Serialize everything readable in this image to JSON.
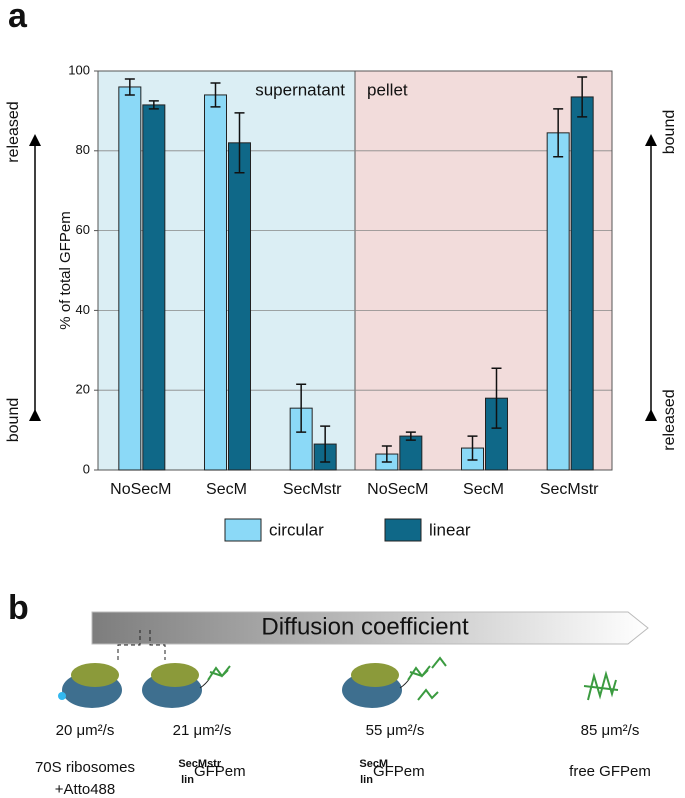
{
  "chart_data": {
    "type": "bar",
    "panel_label": "a",
    "ylabel": "% of total GFPem",
    "categories": [
      "NoSecM",
      "SecM",
      "SecMstr",
      "NoSecM",
      "SecM",
      "SecMstr"
    ],
    "series": [
      {
        "name": "circular",
        "color": "#8bd9f7",
        "values": [
          96,
          94,
          15.5,
          4,
          5.5,
          84.5
        ],
        "errors": [
          2,
          3,
          6,
          2,
          3,
          6
        ]
      },
      {
        "name": "linear",
        "color": "#0f6888",
        "values": [
          91.5,
          82,
          6.5,
          8.5,
          18,
          93.5
        ],
        "errors": [
          1,
          7.5,
          4.5,
          1,
          7.5,
          5
        ]
      }
    ],
    "regions": [
      {
        "name": "supernatant",
        "color": "#dbeef4"
      },
      {
        "name": "pellet",
        "color": "#f2dcdb"
      }
    ],
    "side_labels": {
      "left": [
        "released",
        "bound"
      ],
      "right": [
        "bound",
        "released"
      ]
    },
    "ylim": [
      0,
      100
    ],
    "yticks": [
      0,
      20,
      40,
      60,
      80,
      100
    ],
    "grid": true
  },
  "diagram": {
    "panel_label": "b",
    "arrow_label": "Diffusion coefficient",
    "items": [
      {
        "value": "20 μm²/s",
        "label": [
          "70S ribosomes",
          "+Atto488"
        ]
      },
      {
        "value": "21 μm²/s",
        "label": {
          "sup": "SecMstr",
          "sub": "lin",
          "text": "GFPem"
        }
      },
      {
        "value": "55 μm²/s",
        "label": {
          "sup": "SecM",
          "sub": "lin",
          "text": "GFPem"
        }
      },
      {
        "value": "85 μm²/s",
        "label": "free GFPem"
      }
    ]
  }
}
